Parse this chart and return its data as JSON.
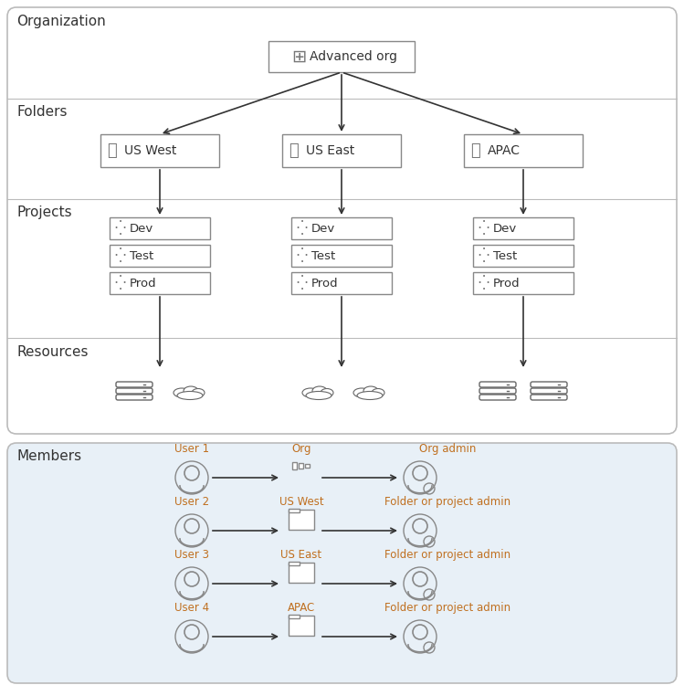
{
  "bg_top": "#ffffff",
  "bg_members": "#e8f0f7",
  "border_color": "#aaaaaa",
  "text_color": "#333333",
  "orange_color": "#c07020",
  "blue_link_color": "#4472c4",
  "folders": [
    "US West",
    "US East",
    "APAC"
  ],
  "projects": [
    "Dev",
    "Test",
    "Prod"
  ],
  "members": [
    {
      "user": "User 1",
      "target": "Org",
      "role": "Org admin"
    },
    {
      "user": "User 2",
      "target": "US West",
      "role": "Folder or project admin"
    },
    {
      "user": "User 3",
      "target": "US East",
      "role": "Folder or project admin"
    },
    {
      "user": "User 4",
      "target": "APAC",
      "role": "Folder or project admin"
    }
  ],
  "section_labels": [
    "Organization",
    "Folders",
    "Projects",
    "Resources",
    "Members"
  ],
  "org_label": "Advanced org"
}
